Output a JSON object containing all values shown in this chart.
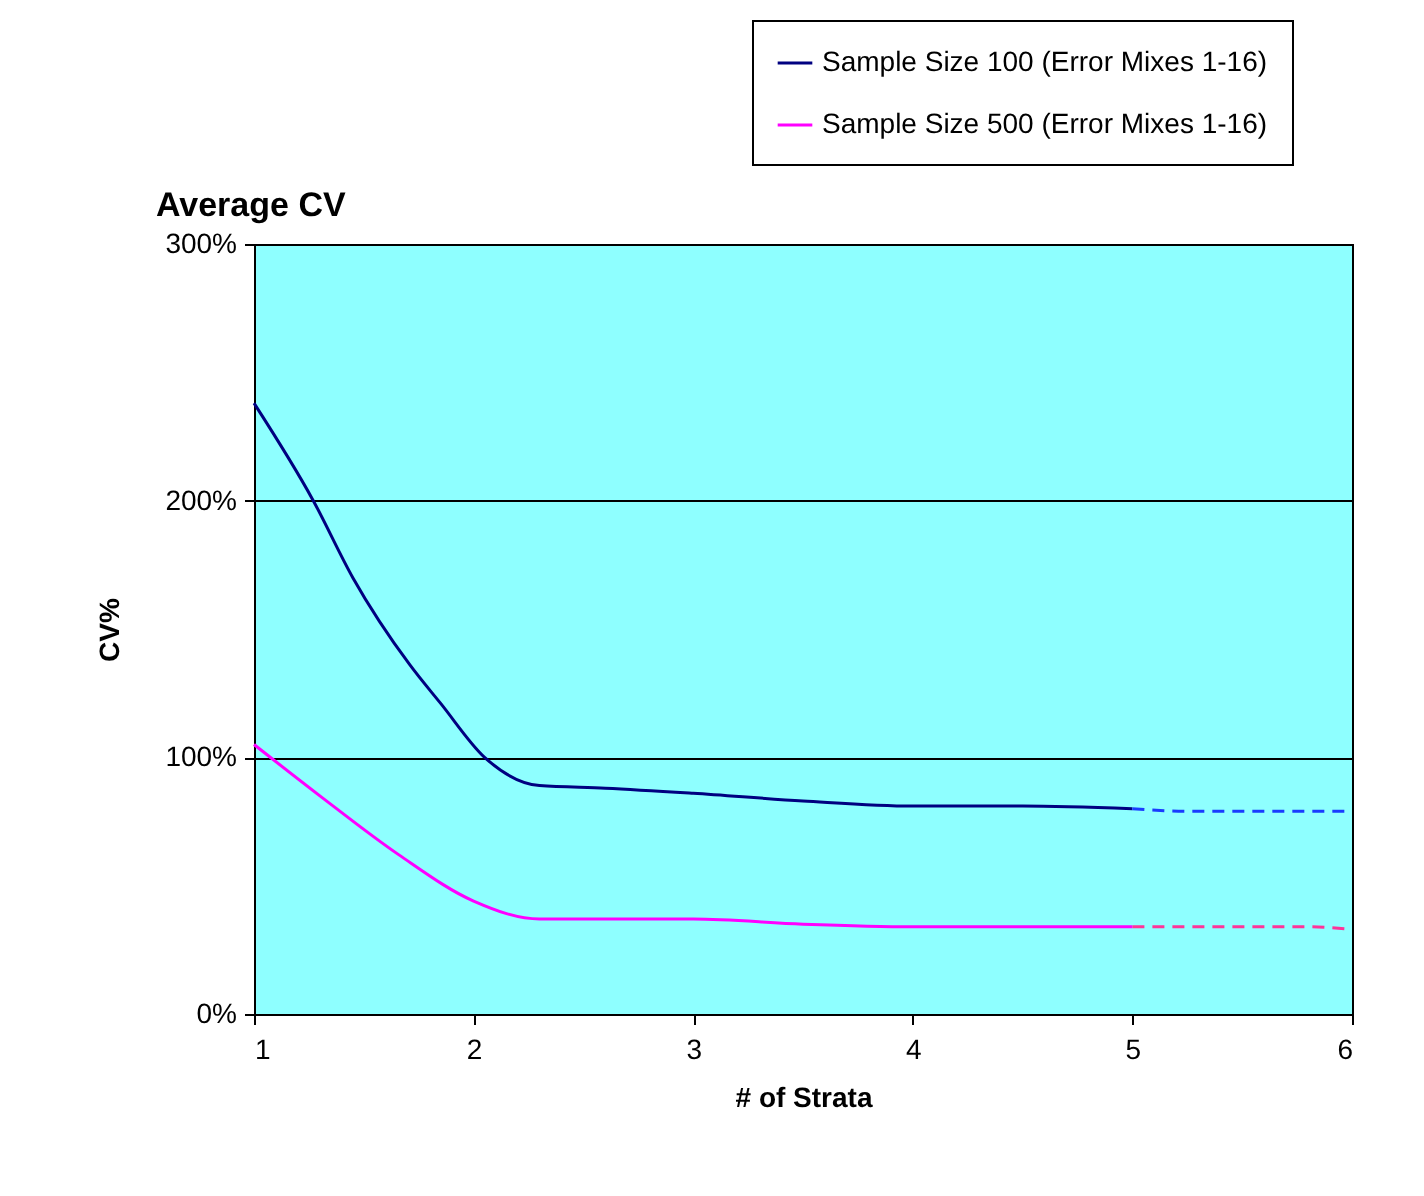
{
  "chart_data": {
    "type": "line",
    "title": "Average CV",
    "xlabel": "# of Strata",
    "ylabel": "CV%",
    "series": [
      {
        "name": "Sample Size 100 (Error Mixes 1-16)",
        "color": "#000080",
        "x": [
          1,
          1.27,
          1.45,
          1.71,
          1.85,
          2.05,
          2.3,
          2.6,
          3,
          3.5,
          4,
          4.5,
          5
        ],
        "values": [
          238,
          200,
          170,
          136,
          121,
          100,
          89,
          88,
          86,
          83,
          81,
          81,
          80
        ]
      },
      {
        "name": "Sample Size 500 (Error Mixes 1-16)",
        "color": "#ff00ff",
        "x": [
          1,
          1.3,
          1.66,
          2,
          2.3,
          2.6,
          3,
          3.5,
          4,
          4.5,
          5
        ],
        "values": [
          105,
          85,
          62,
          44,
          37,
          37,
          37,
          35,
          34,
          34,
          34
        ]
      },
      {
        "color": "#1a3cff",
        "line_style": "dashed",
        "x": [
          5,
          5.25,
          6
        ],
        "values": [
          80,
          79,
          79
        ]
      },
      {
        "color": "#ff3399",
        "line_style": "dashed",
        "x": [
          5,
          5.8,
          6
        ],
        "values": [
          34,
          34,
          33
        ]
      }
    ],
    "xlim": [
      1,
      6
    ],
    "xticks": [
      1,
      2,
      3,
      4,
      5,
      6
    ],
    "ylim": [
      0,
      300
    ],
    "yticks": [
      {
        "value": 0,
        "label": "0%"
      },
      {
        "value": 100,
        "label": "100%"
      },
      {
        "value": 200,
        "label": "200%"
      },
      {
        "value": 300,
        "label": "300%"
      }
    ],
    "grid": "y",
    "legend": "top right",
    "line_style": "solid"
  }
}
